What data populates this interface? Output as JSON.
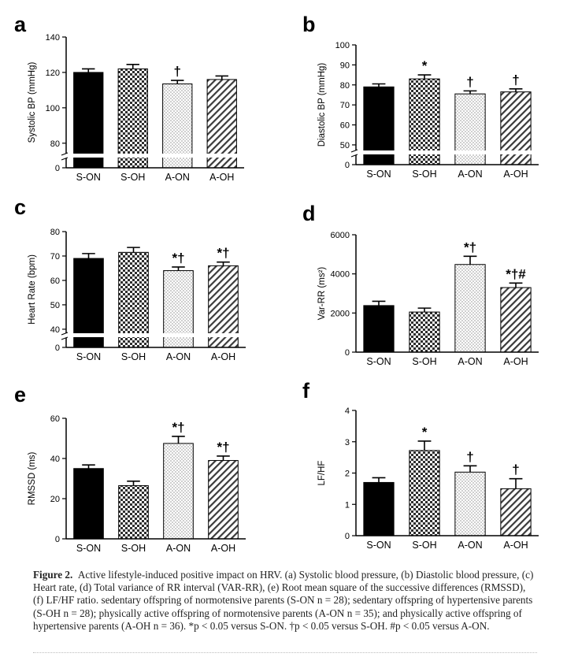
{
  "colors": {
    "black": "#000000",
    "dark_check": "#333333",
    "light_check": "#dddddd",
    "hatch": "#444444"
  },
  "chart_data": [
    {
      "panel": "a",
      "type": "bar",
      "categories": [
        "S-ON",
        "S-OH",
        "A-ON",
        "A-OH"
      ],
      "values": [
        120,
        122,
        113.5,
        116
      ],
      "errors": [
        2,
        2.5,
        2,
        2
      ],
      "marks": [
        "",
        "",
        "†",
        ""
      ],
      "ylabel": "Systolic BP (mmHg)",
      "ylim": [
        75,
        140
      ],
      "ticks": [
        80,
        100,
        120,
        140
      ],
      "axis_break": true,
      "break_tick": "0",
      "ytick_labels": [
        "80",
        "100",
        "120",
        "140"
      ]
    },
    {
      "panel": "b",
      "type": "bar",
      "categories": [
        "S-ON",
        "S-OH",
        "A-ON",
        "A-OH"
      ],
      "values": [
        79,
        83,
        75.5,
        76.5
      ],
      "errors": [
        1.5,
        2,
        1.5,
        1.5
      ],
      "marks": [
        "",
        "*",
        "†",
        "†"
      ],
      "ylabel": "Diastolic BP (mmHg)",
      "ylim": [
        48,
        100
      ],
      "ticks": [
        50,
        60,
        70,
        80,
        90,
        100
      ],
      "axis_break": true,
      "break_tick": "0",
      "ytick_labels": [
        "50",
        "60",
        "70",
        "80",
        "90",
        "100"
      ]
    },
    {
      "panel": "c",
      "type": "bar",
      "categories": [
        "S-ON",
        "S-OH",
        "A-ON",
        "A-OH"
      ],
      "values": [
        69,
        71.5,
        64,
        66
      ],
      "errors": [
        2,
        2,
        1.5,
        1.5
      ],
      "marks": [
        "",
        "",
        "*†",
        "*†"
      ],
      "ylabel": "Heart Rate (bpm)",
      "ylim": [
        39,
        80
      ],
      "ticks": [
        40,
        50,
        60,
        70,
        80
      ],
      "axis_break": true,
      "break_tick": "0",
      "ytick_labels": [
        "40",
        "50",
        "60",
        "70",
        "80"
      ]
    },
    {
      "panel": "d",
      "type": "bar",
      "categories": [
        "S-ON",
        "S-OH",
        "A-ON",
        "A-OH"
      ],
      "values": [
        2380,
        2050,
        4480,
        3300
      ],
      "errors": [
        220,
        200,
        420,
        230
      ],
      "marks": [
        "",
        "",
        "*†",
        "*†#"
      ],
      "ylabel": "Var-RR (ms²)",
      "ylim": [
        0,
        6000
      ],
      "ticks": [
        0,
        2000,
        4000,
        6000
      ],
      "axis_break": false,
      "ytick_labels": [
        "0",
        "2000",
        "4000",
        "6000"
      ]
    },
    {
      "panel": "e",
      "type": "bar",
      "categories": [
        "S-ON",
        "S-OH",
        "A-ON",
        "A-OH"
      ],
      "values": [
        35,
        26.5,
        47.5,
        39
      ],
      "errors": [
        1.8,
        2.2,
        3.5,
        2.2
      ],
      "marks": [
        "",
        "",
        "*†",
        "*†"
      ],
      "ylabel": "RMSSD (ms)",
      "ylim": [
        0,
        60
      ],
      "ticks": [
        0,
        20,
        40,
        60
      ],
      "axis_break": false,
      "ytick_labels": [
        "0",
        "20",
        "40",
        "60"
      ]
    },
    {
      "panel": "f",
      "type": "bar",
      "categories": [
        "S-ON",
        "S-OH",
        "A-ON",
        "A-OH"
      ],
      "values": [
        1.7,
        2.72,
        2.03,
        1.5
      ],
      "errors": [
        0.15,
        0.3,
        0.2,
        0.32
      ],
      "marks": [
        "",
        "*",
        "†",
        "†"
      ],
      "ylabel": "LF/HF",
      "ylim": [
        0,
        4
      ],
      "ticks": [
        0,
        1,
        2,
        3,
        4
      ],
      "axis_break": false,
      "ytick_labels": [
        "0",
        "1",
        "2",
        "3",
        "4"
      ]
    }
  ],
  "caption": {
    "label": "Figure 2.",
    "text": "Active lifestyle-induced positive impact on HRV. (a) Systolic blood pressure, (b) Diastolic blood pressure, (c) Heart rate, (d) Total variance of RR interval (VAR-RR), (e) Root mean square of the successive differences (RMSSD), (f) LF/HF ratio. sedentary offspring of normotensive parents (S-ON n = 28); sedentary offspring of hypertensive parents (S-OH n = 28); physically active offspring of normotensive parents (A-ON n = 35); and physically active offspring of hypertensive parents (A-OH n = 36). *p < 0.05 versus S-ON. †p < 0.05 versus S-OH. #p < 0.05 versus A-ON."
  }
}
